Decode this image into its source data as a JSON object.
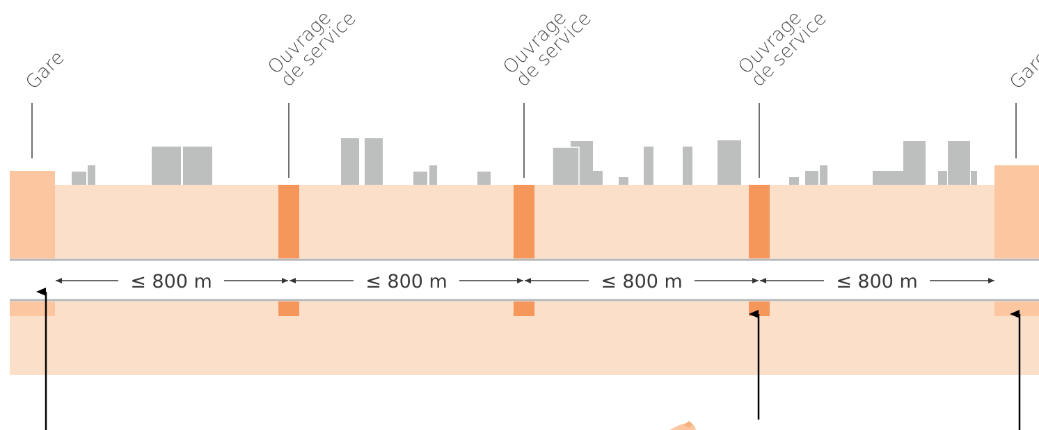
{
  "labels": {
    "gare_left": "Gare",
    "gare_right": "Gare",
    "ouvrage_line1": "Ouvrage",
    "ouvrage_line2": "de service"
  },
  "distances": [
    "≤ 800 m",
    "≤ 800 m",
    "≤ 800 m",
    "≤ 800 m"
  ],
  "colors": {
    "tunnel_light": "#fcdfc8",
    "station": "#fbc6a0",
    "shaft": "#f5975a",
    "building": "#bdbfbe",
    "rail_line": "#b7b7b7",
    "arrow": "#000000",
    "text": "#4d4d4d"
  }
}
